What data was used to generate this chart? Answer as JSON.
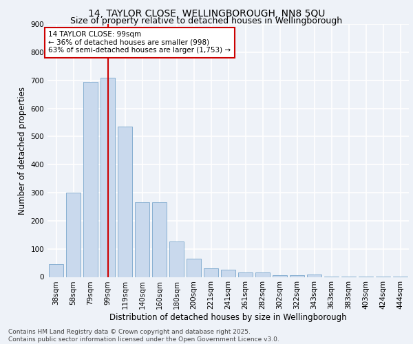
{
  "title1": "14, TAYLOR CLOSE, WELLINGBOROUGH, NN8 5QU",
  "title2": "Size of property relative to detached houses in Wellingborough",
  "xlabel": "Distribution of detached houses by size in Wellingborough",
  "ylabel": "Number of detached properties",
  "categories": [
    "38sqm",
    "58sqm",
    "79sqm",
    "99sqm",
    "119sqm",
    "140sqm",
    "160sqm",
    "180sqm",
    "200sqm",
    "221sqm",
    "241sqm",
    "261sqm",
    "282sqm",
    "302sqm",
    "322sqm",
    "343sqm",
    "363sqm",
    "383sqm",
    "403sqm",
    "424sqm",
    "444sqm"
  ],
  "values": [
    45,
    300,
    695,
    710,
    535,
    265,
    265,
    125,
    65,
    30,
    25,
    15,
    15,
    5,
    5,
    8,
    2,
    1,
    1,
    1,
    1
  ],
  "bar_color": "#c9d9ed",
  "bar_edge_color": "#7aa6cc",
  "subject_line_color": "#cc0000",
  "annotation_line1": "14 TAYLOR CLOSE: 99sqm",
  "annotation_line2": "← 36% of detached houses are smaller (998)",
  "annotation_line3": "63% of semi-detached houses are larger (1,753) →",
  "annotation_box_color": "#ffffff",
  "annotation_box_edge": "#cc0000",
  "background_color": "#eef2f8",
  "grid_color": "#ffffff",
  "ylim": [
    0,
    900
  ],
  "yticks": [
    0,
    100,
    200,
    300,
    400,
    500,
    600,
    700,
    800,
    900
  ],
  "footer": "Contains HM Land Registry data © Crown copyright and database right 2025.\nContains public sector information licensed under the Open Government Licence v3.0.",
  "title1_fontsize": 10,
  "title2_fontsize": 9,
  "xlabel_fontsize": 8.5,
  "ylabel_fontsize": 8.5,
  "tick_fontsize": 7.5,
  "annotation_fontsize": 7.5,
  "footer_fontsize": 6.5
}
